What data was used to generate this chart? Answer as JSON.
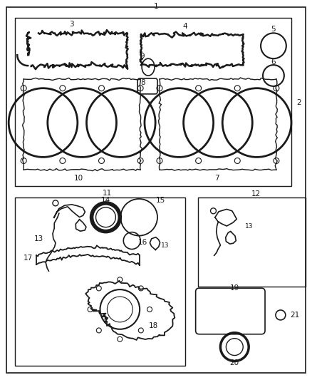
{
  "bg_color": "#ffffff",
  "line_color": "#1a1a1a",
  "text_color": "#1a1a1a",
  "font_size": 7.5,
  "figsize": [
    4.38,
    5.33
  ],
  "dpi": 100
}
